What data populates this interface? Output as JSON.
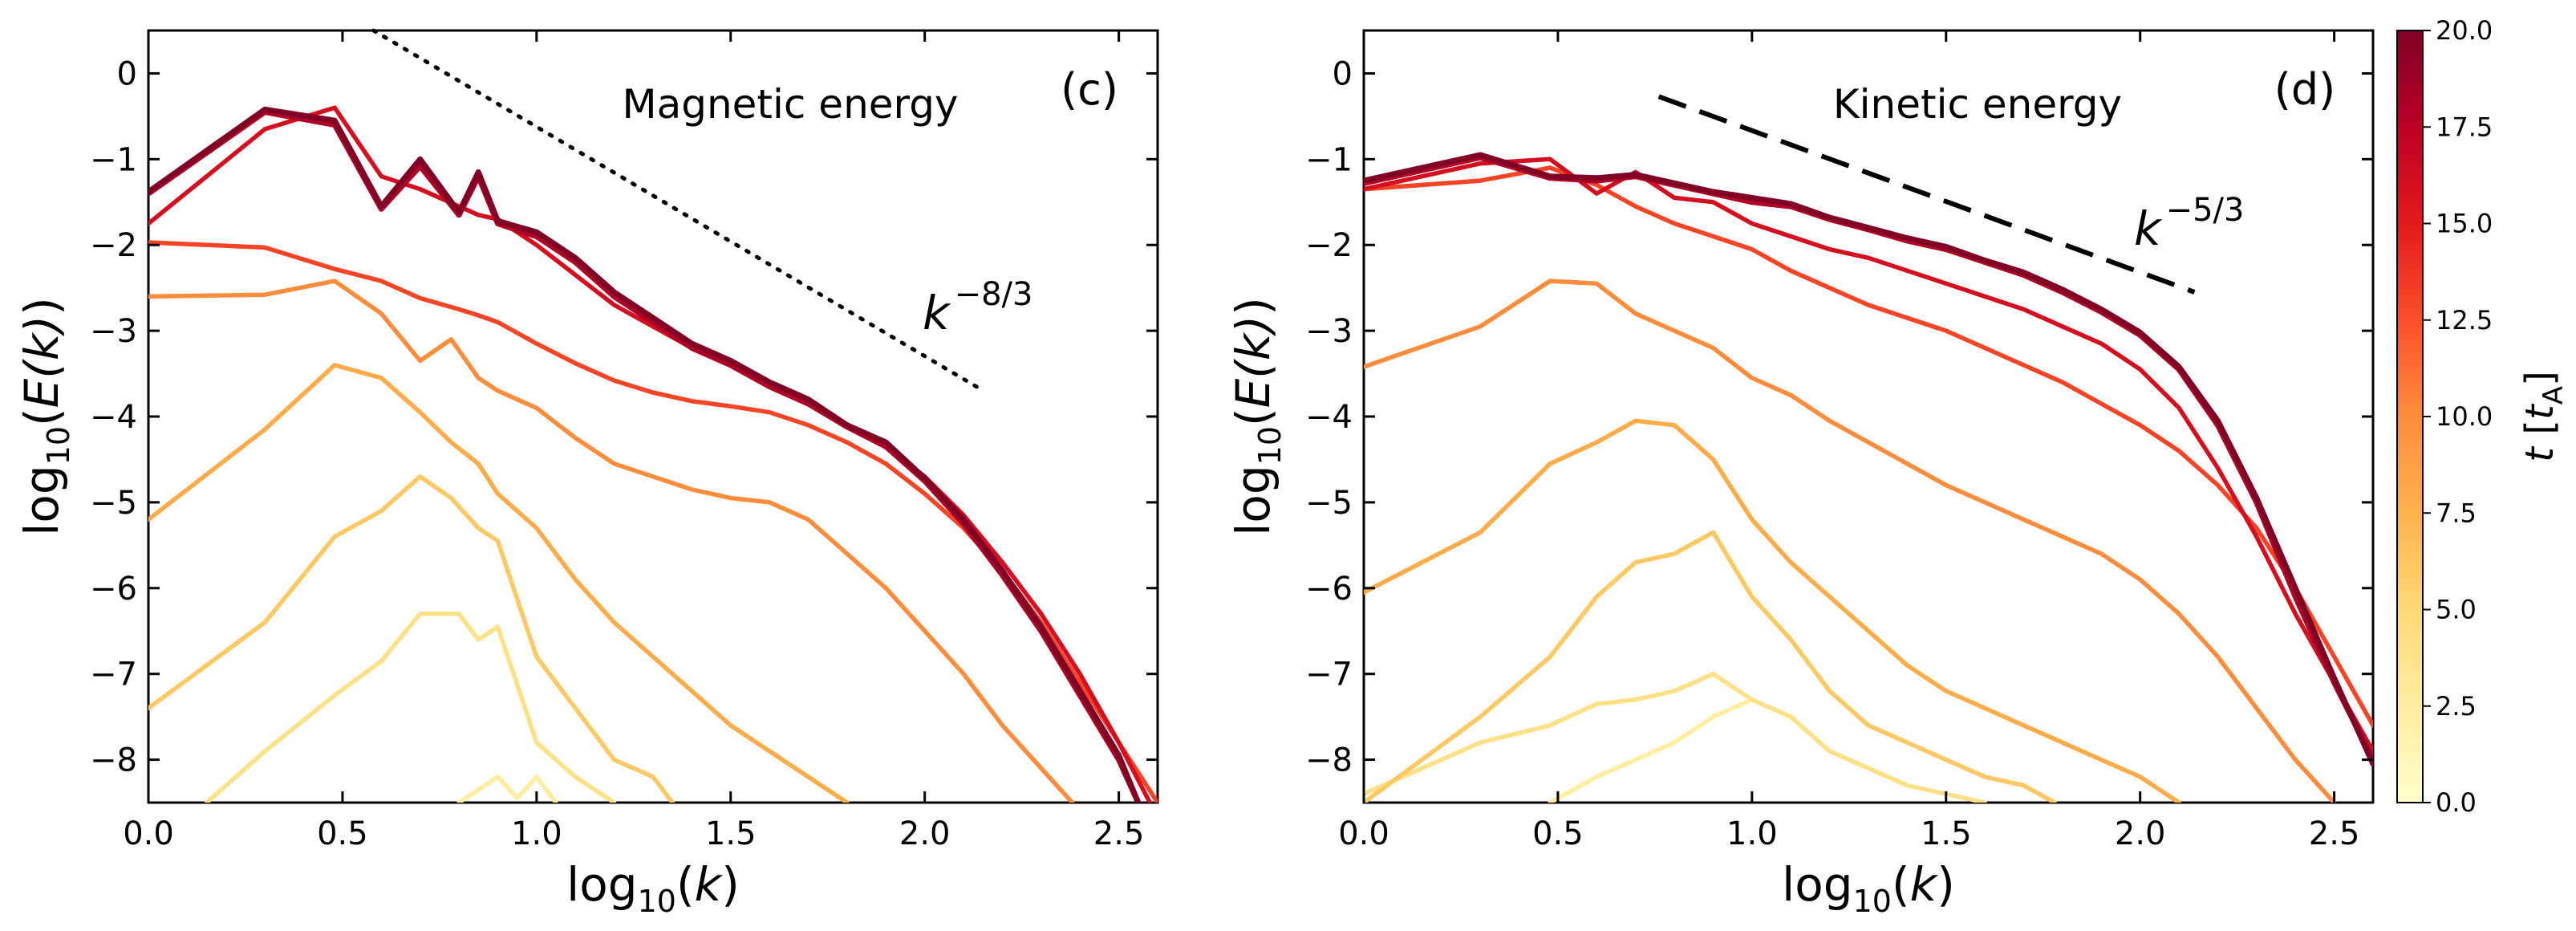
{
  "chart_data": [
    {
      "type": "line",
      "panel": "(c)",
      "annotation": "Magnetic energy",
      "xlabel": "log10(k)",
      "ylabel": "log10(E(k))",
      "xlim": [
        0,
        2.6
      ],
      "ylim": [
        -8.5,
        0.5
      ],
      "xticks": [
        "0.0",
        "0.5",
        "1.0",
        "1.5",
        "2.0",
        "2.5"
      ],
      "yticks": [
        "0",
        "−1",
        "−2",
        "−3",
        "−4",
        "−5",
        "−6",
        "−7",
        "−8"
      ],
      "reference_line": {
        "label": "k^{-8/3}",
        "base": "k",
        "exponent": "−8/3",
        "style": "dotted",
        "x": [
          0.58,
          2.14
        ],
        "y": [
          0.5,
          -3.67
        ]
      },
      "series": [
        {
          "t": 2.5,
          "x": [
            0.8,
            0.85,
            0.9,
            0.95,
            1.0,
            1.05
          ],
          "y": [
            -8.5,
            -8.35,
            -8.2,
            -8.45,
            -8.2,
            -8.5
          ]
        },
        {
          "t": 4,
          "x": [
            0.15,
            0.3,
            0.48,
            0.6,
            0.7,
            0.8,
            0.85,
            0.9,
            1.0,
            1.1,
            1.2
          ],
          "y": [
            -8.5,
            -7.9,
            -7.25,
            -6.85,
            -6.3,
            -6.3,
            -6.6,
            -6.45,
            -7.8,
            -8.2,
            -8.5
          ]
        },
        {
          "t": 6,
          "x": [
            0.0,
            0.3,
            0.48,
            0.6,
            0.7,
            0.78,
            0.85,
            0.9,
            1.0,
            1.1,
            1.2,
            1.3,
            1.35
          ],
          "y": [
            -7.4,
            -6.4,
            -5.4,
            -5.1,
            -4.7,
            -4.95,
            -5.3,
            -5.45,
            -6.8,
            -7.4,
            -8.0,
            -8.2,
            -8.5
          ]
        },
        {
          "t": 8,
          "x": [
            0.0,
            0.3,
            0.48,
            0.6,
            0.7,
            0.78,
            0.85,
            0.9,
            1.0,
            1.1,
            1.2,
            1.3,
            1.4,
            1.5,
            1.6,
            1.7,
            1.8
          ],
          "y": [
            -5.2,
            -4.15,
            -3.4,
            -3.55,
            -3.95,
            -4.3,
            -4.55,
            -4.9,
            -5.3,
            -5.9,
            -6.4,
            -6.8,
            -7.2,
            -7.6,
            -7.9,
            -8.2,
            -8.5
          ]
        },
        {
          "t": 10,
          "x": [
            0.0,
            0.3,
            0.48,
            0.6,
            0.7,
            0.78,
            0.85,
            0.9,
            1.0,
            1.1,
            1.2,
            1.3,
            1.4,
            1.5,
            1.6,
            1.7,
            1.8,
            1.9,
            2.0,
            2.1,
            2.2,
            2.3,
            2.38
          ],
          "y": [
            -2.6,
            -2.58,
            -2.42,
            -2.8,
            -3.35,
            -3.1,
            -3.55,
            -3.7,
            -3.9,
            -4.25,
            -4.55,
            -4.7,
            -4.85,
            -4.95,
            -5.0,
            -5.2,
            -5.6,
            -6.0,
            -6.5,
            -7.0,
            -7.6,
            -8.1,
            -8.5
          ]
        },
        {
          "t": 13,
          "x": [
            0.0,
            0.3,
            0.48,
            0.6,
            0.7,
            0.8,
            0.85,
            0.9,
            1.0,
            1.1,
            1.2,
            1.3,
            1.4,
            1.5,
            1.6,
            1.7,
            1.8,
            1.9,
            2.0,
            2.1,
            2.2,
            2.3,
            2.4,
            2.5,
            2.6
          ],
          "y": [
            -1.97,
            -2.03,
            -2.28,
            -2.42,
            -2.62,
            -2.75,
            -2.82,
            -2.9,
            -3.15,
            -3.38,
            -3.58,
            -3.72,
            -3.82,
            -3.88,
            -3.95,
            -4.1,
            -4.3,
            -4.55,
            -4.9,
            -5.3,
            -5.8,
            -6.4,
            -7.1,
            -7.8,
            -8.5
          ]
        },
        {
          "t": 16,
          "x": [
            0.0,
            0.3,
            0.48,
            0.6,
            0.7,
            0.8,
            0.85,
            0.9,
            1.0,
            1.1,
            1.2,
            1.3,
            1.4,
            1.5,
            1.6,
            1.7,
            1.8,
            1.9,
            2.0,
            2.1,
            2.2,
            2.3,
            2.4,
            2.5,
            2.58
          ],
          "y": [
            -1.75,
            -0.65,
            -0.4,
            -1.2,
            -1.35,
            -1.55,
            -1.65,
            -1.7,
            -2.0,
            -2.35,
            -2.7,
            -2.95,
            -3.2,
            -3.4,
            -3.6,
            -3.85,
            -4.1,
            -4.35,
            -4.7,
            -5.15,
            -5.7,
            -6.3,
            -7.0,
            -7.8,
            -8.5
          ]
        },
        {
          "t": 18,
          "x": [
            0.0,
            0.3,
            0.48,
            0.6,
            0.7,
            0.8,
            0.85,
            0.9,
            1.0,
            1.1,
            1.2,
            1.3,
            1.4,
            1.5,
            1.6,
            1.7,
            1.8,
            1.9,
            2.0,
            2.1,
            2.2,
            2.3,
            2.4,
            2.5,
            2.55
          ],
          "y": [
            -1.4,
            -0.45,
            -0.6,
            -1.58,
            -1.08,
            -1.65,
            -1.2,
            -1.75,
            -1.9,
            -2.2,
            -2.6,
            -2.9,
            -3.2,
            -3.4,
            -3.65,
            -3.85,
            -4.12,
            -4.35,
            -4.75,
            -5.25,
            -5.85,
            -6.5,
            -7.25,
            -8.0,
            -8.5
          ]
        },
        {
          "t": 20,
          "x": [
            0.0,
            0.3,
            0.48,
            0.6,
            0.7,
            0.8,
            0.85,
            0.9,
            1.0,
            1.1,
            1.2,
            1.3,
            1.4,
            1.5,
            1.6,
            1.7,
            1.8,
            1.9,
            2.0,
            2.1,
            2.2,
            2.3,
            2.4,
            2.5,
            2.55
          ],
          "y": [
            -1.38,
            -0.42,
            -0.55,
            -1.55,
            -1.0,
            -1.62,
            -1.15,
            -1.72,
            -1.85,
            -2.15,
            -2.55,
            -2.85,
            -3.15,
            -3.35,
            -3.6,
            -3.8,
            -4.1,
            -4.3,
            -4.72,
            -5.2,
            -5.8,
            -6.45,
            -7.2,
            -7.95,
            -8.5
          ]
        }
      ]
    },
    {
      "type": "line",
      "panel": "(d)",
      "annotation": "Kinetic energy",
      "xlabel": "log10(k)",
      "ylabel": "log10(E(k))",
      "xlim": [
        0,
        2.6
      ],
      "ylim": [
        -8.5,
        0.5
      ],
      "xticks": [
        "0.0",
        "0.5",
        "1.0",
        "1.5",
        "2.0",
        "2.5"
      ],
      "yticks": [
        "0",
        "−1",
        "−2",
        "−3",
        "−4",
        "−5",
        "−6",
        "−7",
        "−8"
      ],
      "reference_line": {
        "label": "k^{-5/3}",
        "base": "k",
        "exponent": "−5/3",
        "style": "dashed",
        "x": [
          0.76,
          2.14
        ],
        "y": [
          -0.27,
          -2.55
        ]
      },
      "series": [
        {
          "t": 2.5,
          "x": [
            0.48,
            0.6,
            0.7,
            0.8,
            0.9,
            1.0
          ],
          "y": [
            -8.5,
            -8.2,
            -8.0,
            -7.8,
            -7.5,
            -7.3
          ]
        },
        {
          "t": 4,
          "x": [
            0.0,
            0.3,
            0.48,
            0.6,
            0.7,
            0.8,
            0.9,
            1.0,
            1.1,
            1.2,
            1.3,
            1.4,
            1.5,
            1.6
          ],
          "y": [
            -8.4,
            -7.8,
            -7.6,
            -7.35,
            -7.3,
            -7.2,
            -7.0,
            -7.3,
            -7.5,
            -7.9,
            -8.1,
            -8.3,
            -8.4,
            -8.5
          ]
        },
        {
          "t": 6,
          "x": [
            0.0,
            0.3,
            0.48,
            0.6,
            0.7,
            0.8,
            0.9,
            1.0,
            1.1,
            1.2,
            1.3,
            1.4,
            1.5,
            1.6,
            1.7,
            1.78
          ],
          "y": [
            -8.5,
            -7.5,
            -6.8,
            -6.1,
            -5.7,
            -5.6,
            -5.35,
            -6.1,
            -6.6,
            -7.2,
            -7.6,
            -7.8,
            -8.0,
            -8.2,
            -8.3,
            -8.5
          ]
        },
        {
          "t": 8,
          "x": [
            0.0,
            0.3,
            0.48,
            0.6,
            0.7,
            0.8,
            0.9,
            1.0,
            1.1,
            1.2,
            1.3,
            1.4,
            1.5,
            1.6,
            1.7,
            1.8,
            1.9,
            2.0,
            2.1
          ],
          "y": [
            -6.05,
            -5.35,
            -4.55,
            -4.3,
            -4.05,
            -4.1,
            -4.5,
            -5.2,
            -5.7,
            -6.1,
            -6.5,
            -6.9,
            -7.2,
            -7.4,
            -7.6,
            -7.8,
            -8.0,
            -8.2,
            -8.5
          ]
        },
        {
          "t": 10,
          "x": [
            0.0,
            0.3,
            0.48,
            0.6,
            0.7,
            0.8,
            0.9,
            1.0,
            1.1,
            1.2,
            1.3,
            1.4,
            1.5,
            1.6,
            1.7,
            1.8,
            1.9,
            2.0,
            2.1,
            2.2,
            2.3,
            2.4,
            2.5
          ],
          "y": [
            -3.42,
            -2.95,
            -2.42,
            -2.45,
            -2.8,
            -3.0,
            -3.2,
            -3.55,
            -3.75,
            -4.05,
            -4.3,
            -4.55,
            -4.8,
            -5.0,
            -5.2,
            -5.4,
            -5.6,
            -5.9,
            -6.3,
            -6.8,
            -7.4,
            -8.0,
            -8.5
          ]
        },
        {
          "t": 13,
          "x": [
            0.0,
            0.3,
            0.48,
            0.6,
            0.7,
            0.8,
            0.9,
            1.0,
            1.1,
            1.2,
            1.3,
            1.4,
            1.5,
            1.6,
            1.7,
            1.8,
            1.9,
            2.0,
            2.1,
            2.2,
            2.3,
            2.4,
            2.5,
            2.6
          ],
          "y": [
            -1.35,
            -1.25,
            -1.1,
            -1.3,
            -1.55,
            -1.75,
            -1.9,
            -2.05,
            -2.3,
            -2.5,
            -2.7,
            -2.85,
            -3.0,
            -3.2,
            -3.4,
            -3.6,
            -3.85,
            -4.1,
            -4.4,
            -4.8,
            -5.3,
            -6.0,
            -6.8,
            -7.6
          ]
        },
        {
          "t": 16,
          "x": [
            0.0,
            0.3,
            0.48,
            0.6,
            0.7,
            0.8,
            0.9,
            1.0,
            1.1,
            1.2,
            1.3,
            1.4,
            1.5,
            1.6,
            1.7,
            1.8,
            1.9,
            2.0,
            2.1,
            2.2,
            2.3,
            2.4,
            2.5,
            2.6
          ],
          "y": [
            -1.35,
            -1.05,
            -1.0,
            -1.4,
            -1.15,
            -1.45,
            -1.5,
            -1.75,
            -1.9,
            -2.05,
            -2.15,
            -2.3,
            -2.45,
            -2.6,
            -2.75,
            -2.95,
            -3.15,
            -3.45,
            -3.9,
            -4.6,
            -5.4,
            -6.3,
            -7.1,
            -7.9
          ]
        },
        {
          "t": 18,
          "x": [
            0.0,
            0.3,
            0.48,
            0.6,
            0.7,
            0.8,
            0.9,
            1.0,
            1.1,
            1.2,
            1.3,
            1.4,
            1.5,
            1.6,
            1.7,
            1.8,
            1.9,
            2.0,
            2.1,
            2.2,
            2.3,
            2.4,
            2.5,
            2.6
          ],
          "y": [
            -1.28,
            -0.98,
            -1.22,
            -1.25,
            -1.2,
            -1.3,
            -1.4,
            -1.5,
            -1.55,
            -1.7,
            -1.82,
            -1.95,
            -2.05,
            -2.2,
            -2.35,
            -2.55,
            -2.78,
            -3.05,
            -3.45,
            -4.1,
            -5.0,
            -6.1,
            -7.1,
            -8.0
          ]
        },
        {
          "t": 20,
          "x": [
            0.0,
            0.3,
            0.48,
            0.6,
            0.7,
            0.8,
            0.9,
            1.0,
            1.1,
            1.2,
            1.3,
            1.4,
            1.5,
            1.6,
            1.7,
            1.8,
            1.9,
            2.0,
            2.1,
            2.2,
            2.3,
            2.4,
            2.5,
            2.6
          ],
          "y": [
            -1.25,
            -0.95,
            -1.2,
            -1.22,
            -1.18,
            -1.28,
            -1.38,
            -1.45,
            -1.52,
            -1.68,
            -1.8,
            -1.92,
            -2.02,
            -2.18,
            -2.32,
            -2.52,
            -2.75,
            -3.02,
            -3.42,
            -4.05,
            -4.95,
            -6.0,
            -7.05,
            -8.05
          ]
        }
      ]
    }
  ],
  "colorbar": {
    "label": "t [tA]",
    "label_main": "t",
    "label_unit": "t",
    "label_sub": "A",
    "range": [
      0,
      20
    ],
    "ticks": [
      "0.0",
      "2.5",
      "5.0",
      "7.5",
      "10.0",
      "12.5",
      "15.0",
      "17.5",
      "20.0"
    ],
    "colormap": [
      "#ffffcc",
      "#ffeda0",
      "#fed976",
      "#feb24c",
      "#fd8d3c",
      "#fc4e2a",
      "#e31a1c",
      "#bd0026",
      "#800026"
    ]
  },
  "ui": {
    "panel_c_title": "Magnetic energy",
    "panel_c_tag": "(c)",
    "panel_d_title": "Kinetic energy",
    "panel_d_tag": "(d)",
    "slope_c_base": "k",
    "slope_c_exp": "−8/3",
    "slope_d_base": "k",
    "slope_d_exp": "−5/3",
    "x_label_prefix": "log",
    "x_label_sub": "10",
    "x_label_arg": "k",
    "y_label_prefix": "log",
    "y_label_sub": "10",
    "y_label_arg": "E(k)"
  }
}
